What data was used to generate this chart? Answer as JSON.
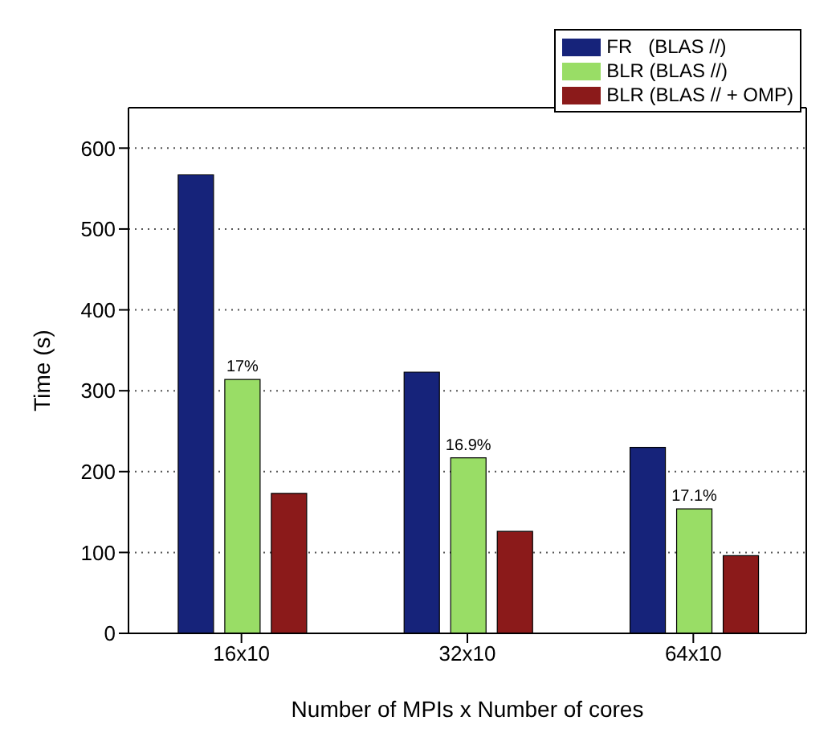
{
  "chart_data": {
    "type": "bar",
    "xlabel": "Number of MPIs x Number of cores",
    "ylabel": "Time (s)",
    "categories": [
      "16x10",
      "32x10",
      "64x10"
    ],
    "series": [
      {
        "name": "FR   (BLAS //)",
        "color": "#16237a",
        "values": [
          567,
          323,
          230
        ]
      },
      {
        "name": "BLR (BLAS //)",
        "color": "#99dd66",
        "values": [
          314,
          217,
          154
        ]
      },
      {
        "name": "BLR (BLAS // + OMP)",
        "color": "#8b1a1a",
        "values": [
          173,
          126,
          96
        ]
      }
    ],
    "ylim": [
      0,
      650
    ],
    "yticks": [
      0,
      100,
      200,
      300,
      400,
      500,
      600
    ],
    "grid": "y",
    "legend": "top right",
    "annotations": [
      {
        "text": "17%",
        "x": "16x10",
        "y": 314
      },
      {
        "text": "16.9%",
        "x": "32x10",
        "y": 217
      },
      {
        "text": "17.1%",
        "x": "64x10",
        "y": 154
      }
    ]
  }
}
